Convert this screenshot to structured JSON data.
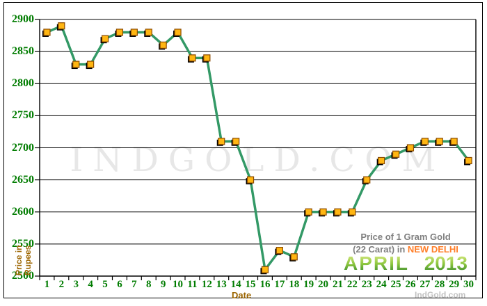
{
  "title": {
    "line1": "Price of 1 Gram Gold",
    "line2_prefix": "(22 Carat) in ",
    "city": "NEW DELHI",
    "month": "APRIL",
    "year": "2013"
  },
  "axes": {
    "x_label": "Date",
    "y_label_line1": "Price in",
    "y_label_line2": "Rupees"
  },
  "watermark": {
    "text": "INDGOLD.COM"
  },
  "credit": {
    "text": "IndGold.com"
  },
  "colors": {
    "line": "#339966",
    "marker_fill": "#ffb612",
    "marker_border": "#8a4a00",
    "marker_shadow": "#000000",
    "axis": "#000000",
    "tick_label": "#007c00",
    "axis_title": "#9c6500",
    "title_gray": "#7f7f7f",
    "city_orange": "#ff7f2a",
    "month_green_top": "#d8e980",
    "month_green_bottom": "#37892f",
    "watermark_gray": "#e7e7e7"
  },
  "chart_data": {
    "type": "line",
    "title": "Price of 1 Gram Gold (22 Carat) in NEW DELHI - APRIL 2013",
    "xlabel": "Date",
    "ylabel": "Price in Rupees",
    "x": [
      1,
      2,
      3,
      4,
      5,
      6,
      7,
      8,
      9,
      10,
      11,
      12,
      13,
      14,
      15,
      16,
      17,
      18,
      19,
      20,
      21,
      22,
      23,
      24,
      25,
      26,
      27,
      28,
      29,
      30
    ],
    "values": [
      2880,
      2890,
      2830,
      2830,
      2870,
      2880,
      2880,
      2880,
      2860,
      2880,
      2840,
      2840,
      2710,
      2710,
      2650,
      2510,
      2540,
      2530,
      2600,
      2600,
      2600,
      2600,
      2650,
      2680,
      2690,
      2700,
      2710,
      2710,
      2710,
      2680
    ],
    "ylim": [
      2500,
      2900
    ],
    "ytick_step": 50,
    "yticks": [
      2500,
      2550,
      2600,
      2650,
      2700,
      2750,
      2800,
      2850,
      2900
    ],
    "grid": true,
    "legend": "none",
    "marker": "square"
  }
}
